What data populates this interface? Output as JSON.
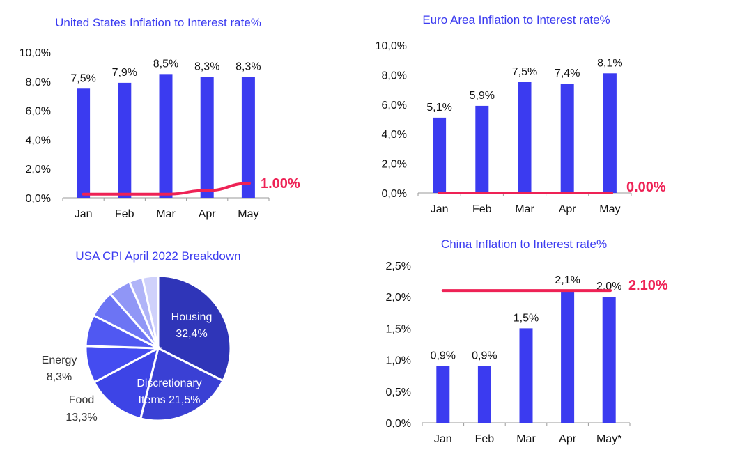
{
  "colors": {
    "bar": "#3b3bf0",
    "rate_line": "#ee2255",
    "title": "#3b3bf0",
    "axis": "#999999"
  },
  "chart_data": [
    {
      "id": "us",
      "type": "bar",
      "title": "United States Inflation to Interest rate%",
      "categories": [
        "Jan",
        "Feb",
        "Mar",
        "Apr",
        "May"
      ],
      "series": [
        {
          "kind": "bar",
          "values": [
            7.5,
            7.9,
            8.5,
            8.3,
            8.3
          ],
          "labels": [
            "7,5%",
            "7,9%",
            "8,5%",
            "8,3%",
            "8,3%"
          ]
        },
        {
          "kind": "line",
          "values": [
            0.25,
            0.25,
            0.25,
            0.5,
            1.0
          ]
        }
      ],
      "end_label": "1.00%",
      "ylim": [
        0,
        10
      ],
      "yticks": [
        "0,0%",
        "2,0%",
        "4,0%",
        "6,0%",
        "8,0%",
        "10,0%"
      ],
      "ytick_values": [
        0,
        2,
        4,
        6,
        8,
        10
      ]
    },
    {
      "id": "euro",
      "type": "bar",
      "title": "Euro Area Inflation to Interest rate%",
      "categories": [
        "Jan",
        "Feb",
        "Mar",
        "Apr",
        "May"
      ],
      "series": [
        {
          "kind": "bar",
          "values": [
            5.1,
            5.9,
            7.5,
            7.4,
            8.1
          ],
          "labels": [
            "5,1%",
            "5,9%",
            "7,5%",
            "7,4%",
            "8,1%"
          ]
        },
        {
          "kind": "line",
          "values": [
            0,
            0,
            0,
            0,
            0
          ]
        }
      ],
      "end_label": "0.00%",
      "ylim": [
        0,
        10
      ],
      "yticks": [
        "0,0%",
        "2,0%",
        "4,0%",
        "6,0%",
        "8,0%",
        "10,0%"
      ],
      "ytick_values": [
        0,
        2,
        4,
        6,
        8,
        10
      ]
    },
    {
      "id": "china",
      "type": "bar",
      "title": "China Inflation to Interest rate%",
      "categories": [
        "Jan",
        "Feb",
        "Mar",
        "Apr",
        "May*"
      ],
      "series": [
        {
          "kind": "bar",
          "values": [
            0.9,
            0.9,
            1.5,
            2.1,
            2.0
          ],
          "labels": [
            "0,9%",
            "0,9%",
            "1,5%",
            "2,1%",
            "2,0%"
          ]
        },
        {
          "kind": "line",
          "values": [
            2.1,
            2.1,
            2.1,
            2.1,
            2.1
          ]
        }
      ],
      "end_label": "2.10%",
      "ylim": [
        0,
        2.5
      ],
      "yticks": [
        "0,0%",
        "0,5%",
        "1,0%",
        "1,5%",
        "2,0%",
        "2,5%"
      ],
      "ytick_values": [
        0,
        0.5,
        1.0,
        1.5,
        2.0,
        2.5
      ]
    },
    {
      "id": "pie",
      "type": "pie",
      "title": "USA CPI April 2022 Breakdown",
      "slices": [
        {
          "label": "Housing",
          "value": 32.4,
          "text": "32,4%",
          "color": "#2f35b8"
        },
        {
          "label": "Discretionary Items",
          "value": 21.5,
          "text": "21,5%",
          "color": "#3a40d4"
        },
        {
          "label": "Food",
          "value": 13.3,
          "text": "13,3%",
          "color": "#3d44e6"
        },
        {
          "label": "Energy",
          "value": 8.3,
          "text": "8,3%",
          "color": "#444cf0"
        },
        {
          "label": "",
          "value": 7.0,
          "text": "",
          "color": "#5058f2"
        },
        {
          "label": "",
          "value": 6.0,
          "text": "",
          "color": "#6c74f4"
        },
        {
          "label": "",
          "value": 5.0,
          "text": "",
          "color": "#9096f6"
        },
        {
          "label": "",
          "value": 3.0,
          "text": "",
          "color": "#b0b4f8"
        },
        {
          "label": "",
          "value": 3.5,
          "text": "",
          "color": "#cfd1fb"
        }
      ]
    }
  ]
}
